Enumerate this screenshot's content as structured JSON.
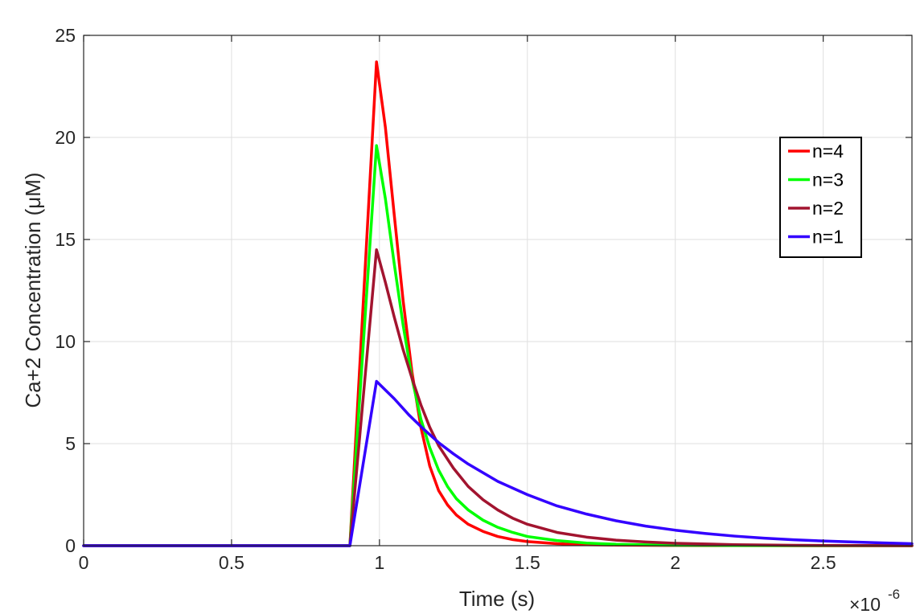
{
  "chart_data": {
    "type": "line",
    "xlabel": "Time (s)",
    "ylabel": "Ca+2 Concentration (μM)",
    "x_exponent_label": "×10",
    "x_exponent_power": "-6",
    "xlim": [
      0,
      2.8
    ],
    "ylim": [
      0,
      25
    ],
    "xticks": [
      0,
      0.5,
      1,
      1.5,
      2,
      2.5
    ],
    "xtick_labels": [
      "0",
      "0.5",
      "1",
      "1.5",
      "2",
      "2.5"
    ],
    "yticks": [
      0,
      5,
      10,
      15,
      20,
      25
    ],
    "ytick_labels": [
      "0",
      "5",
      "10",
      "15",
      "20",
      "25"
    ],
    "grid": true,
    "legend_position": "top-right",
    "series": [
      {
        "name": "n=4",
        "color": "#ff0000",
        "x": [
          0,
          0.9,
          0.99,
          1.02,
          1.05,
          1.08,
          1.11,
          1.14,
          1.17,
          1.2,
          1.23,
          1.26,
          1.3,
          1.35,
          1.4,
          1.45,
          1.5,
          1.6,
          1.7,
          1.8,
          2.0,
          2.2,
          2.5,
          2.8
        ],
        "y": [
          0,
          0,
          23.7,
          20.5,
          16.2,
          12.0,
          8.5,
          5.8,
          3.9,
          2.7,
          2.0,
          1.5,
          1.05,
          0.7,
          0.45,
          0.3,
          0.2,
          0.1,
          0.05,
          0.03,
          0.01,
          0.005,
          0,
          0
        ]
      },
      {
        "name": "n=3",
        "color": "#00ff00",
        "x": [
          0,
          0.9,
          0.99,
          1.02,
          1.05,
          1.08,
          1.11,
          1.14,
          1.17,
          1.2,
          1.23,
          1.26,
          1.3,
          1.35,
          1.4,
          1.45,
          1.5,
          1.6,
          1.7,
          1.8,
          2.0,
          2.2,
          2.5,
          2.8
        ],
        "y": [
          0,
          0,
          19.6,
          17.0,
          13.8,
          10.8,
          8.2,
          6.2,
          4.8,
          3.7,
          2.9,
          2.3,
          1.75,
          1.25,
          0.9,
          0.65,
          0.45,
          0.25,
          0.13,
          0.07,
          0.02,
          0.01,
          0,
          0
        ]
      },
      {
        "name": "n=2",
        "color": "#a2142f",
        "x": [
          0,
          0.9,
          0.99,
          1.02,
          1.05,
          1.08,
          1.11,
          1.14,
          1.17,
          1.2,
          1.25,
          1.3,
          1.35,
          1.4,
          1.45,
          1.5,
          1.6,
          1.7,
          1.8,
          1.9,
          2.0,
          2.2,
          2.4,
          2.6,
          2.8
        ],
        "y": [
          0,
          0,
          14.5,
          12.9,
          11.2,
          9.6,
          8.2,
          6.9,
          5.8,
          4.9,
          3.8,
          2.9,
          2.25,
          1.75,
          1.35,
          1.05,
          0.65,
          0.42,
          0.27,
          0.18,
          0.12,
          0.05,
          0.02,
          0.01,
          0
        ]
      },
      {
        "name": "n=1",
        "color": "#3300ff",
        "x": [
          0,
          0.9,
          0.99,
          1.05,
          1.1,
          1.15,
          1.2,
          1.25,
          1.3,
          1.4,
          1.5,
          1.6,
          1.7,
          1.8,
          1.9,
          2.0,
          2.1,
          2.2,
          2.3,
          2.4,
          2.5,
          2.6,
          2.7,
          2.8
        ],
        "y": [
          0,
          0,
          8.05,
          7.2,
          6.4,
          5.7,
          5.05,
          4.5,
          4.0,
          3.15,
          2.5,
          1.95,
          1.55,
          1.22,
          0.96,
          0.76,
          0.6,
          0.47,
          0.37,
          0.29,
          0.23,
          0.18,
          0.14,
          0.1
        ]
      }
    ]
  }
}
